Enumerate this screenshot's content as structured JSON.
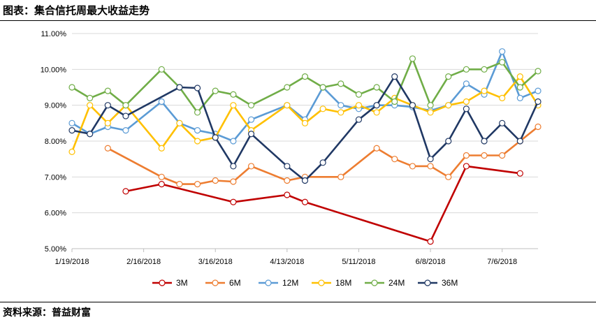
{
  "header": {
    "title": "图表：集合信托周最大收益走势"
  },
  "footer": {
    "source": "资料来源：普益财富"
  },
  "chart_data": {
    "type": "line",
    "title": "",
    "xlabel": "",
    "ylabel": "",
    "ylim": [
      5.0,
      11.0
    ],
    "y_ticks": [
      "5.00%",
      "6.00%",
      "7.00%",
      "8.00%",
      "9.00%",
      "10.00%",
      "11.00%"
    ],
    "x_tick_labels": [
      "1/19/2018",
      "2/16/2018",
      "3/16/2018",
      "4/13/2018",
      "5/11/2018",
      "6/8/2018",
      "7/6/2018"
    ],
    "x_dates": [
      "1/19/2018",
      "1/26/2018",
      "2/2/2018",
      "2/9/2018",
      "2/16/2018",
      "2/23/2018",
      "3/2/2018",
      "3/9/2018",
      "3/16/2018",
      "3/23/2018",
      "3/30/2018",
      "4/6/2018",
      "4/13/2018",
      "4/20/2018",
      "4/27/2018",
      "5/4/2018",
      "5/11/2018",
      "5/18/2018",
      "5/25/2018",
      "6/1/2018",
      "6/8/2018",
      "6/15/2018",
      "6/22/2018",
      "6/29/2018",
      "7/6/2018",
      "7/13/2018",
      "7/20/2018"
    ],
    "legend_position": "bottom",
    "grid": "horizontal",
    "series": [
      {
        "name": "3M",
        "color": "#C00000",
        "values": [
          null,
          null,
          null,
          6.6,
          null,
          6.8,
          null,
          null,
          null,
          6.3,
          null,
          null,
          6.5,
          6.3,
          null,
          null,
          null,
          null,
          null,
          null,
          5.2,
          null,
          7.3,
          null,
          null,
          7.1,
          null
        ]
      },
      {
        "name": "6M",
        "color": "#ED7D31",
        "values": [
          null,
          null,
          7.8,
          null,
          null,
          7.0,
          6.8,
          6.8,
          6.9,
          6.87,
          7.3,
          null,
          6.9,
          7.0,
          null,
          7.0,
          null,
          7.8,
          7.5,
          7.3,
          7.3,
          7.0,
          7.6,
          7.6,
          7.6,
          8.0,
          8.4
        ]
      },
      {
        "name": "12M",
        "color": "#5B9BD5",
        "values": [
          8.5,
          8.2,
          8.4,
          8.3,
          null,
          9.1,
          8.5,
          8.3,
          8.2,
          8.0,
          8.6,
          null,
          9.0,
          8.6,
          9.5,
          9.0,
          8.9,
          9.0,
          9.0,
          8.95,
          8.85,
          9.0,
          9.6,
          9.3,
          10.5,
          9.2,
          9.4
        ]
      },
      {
        "name": "18M",
        "color": "#FFC000",
        "values": [
          7.7,
          9.0,
          8.5,
          9.0,
          null,
          7.8,
          8.5,
          8.0,
          8.1,
          9.0,
          8.3,
          null,
          9.0,
          8.5,
          8.9,
          8.8,
          9.0,
          8.8,
          9.2,
          9.0,
          8.8,
          9.0,
          9.1,
          9.4,
          9.2,
          9.8,
          9.0
        ]
      },
      {
        "name": "24M",
        "color": "#70AD47",
        "values": [
          9.5,
          9.2,
          9.4,
          9.0,
          null,
          10.0,
          9.5,
          8.8,
          9.4,
          9.3,
          9.0,
          null,
          9.5,
          9.8,
          9.5,
          9.6,
          9.3,
          9.5,
          9.1,
          10.3,
          9.0,
          9.8,
          10.0,
          10.0,
          10.2,
          9.5,
          9.95
        ]
      },
      {
        "name": "36M",
        "color": "#203864",
        "values": [
          8.3,
          8.2,
          9.0,
          8.7,
          null,
          null,
          9.5,
          9.48,
          8.1,
          7.3,
          8.2,
          null,
          7.3,
          6.9,
          7.4,
          null,
          8.6,
          9.0,
          9.8,
          9.0,
          7.5,
          8.0,
          8.9,
          8.0,
          8.5,
          8.0,
          9.1
        ]
      }
    ]
  }
}
